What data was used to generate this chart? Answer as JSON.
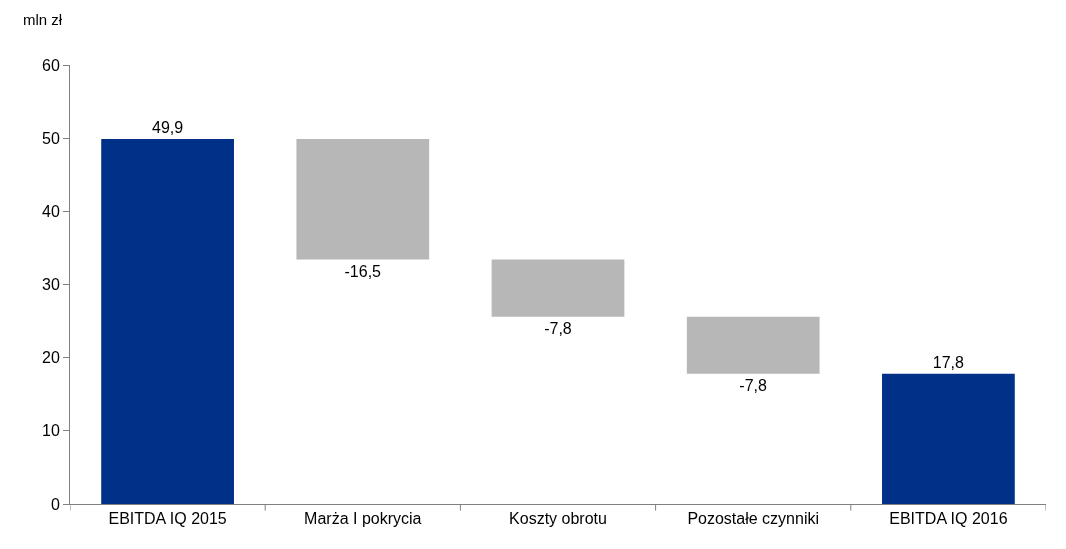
{
  "chart_data": {
    "type": "bar",
    "ylabel": "mln zł",
    "categories": [
      "EBITDA IQ 2015",
      "Marża I pokrycia",
      "Koszty obrotu",
      "Pozostałe czynniki",
      "EBITDA IQ 2016"
    ],
    "values": [
      49.9,
      -16.5,
      -7.8,
      -7.8,
      17.8
    ],
    "base": [
      0,
      49.9,
      33.4,
      25.6,
      0
    ],
    "colors": [
      "#003087",
      "#b7b7b7",
      "#b7b7b7",
      "#b7b7b7",
      "#003087"
    ],
    "value_labels": [
      "49,9",
      "-16,5",
      "-7,8",
      "-7,8",
      "17,8"
    ],
    "ylim": [
      0,
      60
    ],
    "yticks": [
      0,
      10,
      20,
      30,
      40,
      50,
      60
    ]
  }
}
